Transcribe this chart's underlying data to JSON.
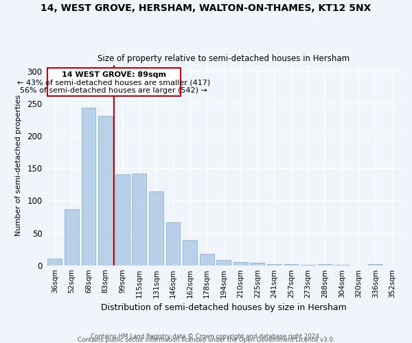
{
  "title": "14, WEST GROVE, HERSHAM, WALTON-ON-THAMES, KT12 5NX",
  "subtitle": "Size of property relative to semi-detached houses in Hersham",
  "xlabel": "Distribution of semi-detached houses by size in Hersham",
  "ylabel": "Number of semi-detached properties",
  "footnote1": "Contains HM Land Registry data © Crown copyright and database right 2024.",
  "footnote2": "Contains public sector information licensed under the Open Government Licence v3.0.",
  "property_label": "14 WEST GROVE: 89sqm",
  "smaller_text": "← 43% of semi-detached houses are smaller (417)",
  "larger_text": "56% of semi-detached houses are larger (542) →",
  "categories": [
    "36sqm",
    "52sqm",
    "68sqm",
    "83sqm",
    "99sqm",
    "115sqm",
    "131sqm",
    "146sqm",
    "162sqm",
    "178sqm",
    "194sqm",
    "210sqm",
    "225sqm",
    "241sqm",
    "257sqm",
    "273sqm",
    "288sqm",
    "304sqm",
    "320sqm",
    "336sqm",
    "352sqm"
  ],
  "values": [
    10,
    87,
    244,
    231,
    141,
    142,
    114,
    67,
    39,
    18,
    8,
    5,
    4,
    2,
    2,
    1,
    2,
    1,
    0,
    2,
    0
  ],
  "bar_color": "#b8d0e8",
  "bar_edgecolor": "#8ab4d4",
  "redline_color": "#cc0000",
  "redline_x": 3.5,
  "box_edgecolor": "#cc0000",
  "background_color": "#f0f4fb",
  "axes_background": "#f0f4fb",
  "grid_color": "#ffffff",
  "ylim": [
    0,
    310
  ],
  "yticks": [
    0,
    50,
    100,
    150,
    200,
    250,
    300
  ]
}
